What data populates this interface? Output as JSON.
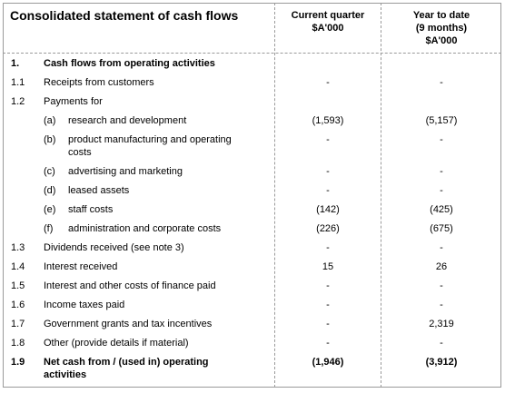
{
  "header": {
    "title": "Consolidated statement of cash flows",
    "columns": [
      [
        "Current quarter",
        "$A'000"
      ],
      [
        "Year to date",
        "(9 months)",
        "$A'000"
      ]
    ]
  },
  "table": {
    "rows": [
      {
        "num": "1.",
        "label": [
          "Cash flows from operating activities"
        ],
        "bold": true
      },
      {
        "num": "1.1",
        "label": [
          "Receipts from customers"
        ],
        "cq": "-",
        "ytd": "-"
      },
      {
        "num": "1.2",
        "label": [
          "Payments for"
        ]
      },
      {
        "sub": "(a)",
        "label": [
          "research and development"
        ],
        "cq": "(1,593)",
        "ytd": "(5,157)"
      },
      {
        "sub": "(b)",
        "label": [
          "product manufacturing and operating",
          "costs"
        ],
        "cq": "-",
        "ytd": "-"
      },
      {
        "sub": "(c)",
        "label": [
          "advertising and marketing"
        ],
        "cq": "-",
        "ytd": "-"
      },
      {
        "sub": "(d)",
        "label": [
          "leased assets"
        ],
        "cq": "-",
        "ytd": "-"
      },
      {
        "sub": "(e)",
        "label": [
          "staff costs"
        ],
        "cq": "(142)",
        "ytd": "(425)"
      },
      {
        "sub": "(f)",
        "label": [
          "administration and corporate costs"
        ],
        "cq": "(226)",
        "ytd": "(675)"
      },
      {
        "num": "1.3",
        "label": [
          "Dividends received (see note 3)"
        ],
        "cq": "-",
        "ytd": "-"
      },
      {
        "num": "1.4",
        "label": [
          "Interest received"
        ],
        "cq": "15",
        "ytd": "26"
      },
      {
        "num": "1.5",
        "label": [
          "Interest and other costs of finance paid"
        ],
        "cq": "-",
        "ytd": "-"
      },
      {
        "num": "1.6",
        "label": [
          "Income taxes paid"
        ],
        "cq": "-",
        "ytd": "-"
      },
      {
        "num": "1.7",
        "label": [
          "Government grants and tax incentives"
        ],
        "cq": "-",
        "ytd": "2,319"
      },
      {
        "num": "1.8",
        "label": [
          "Other (provide details if material)"
        ],
        "cq": "-",
        "ytd": "-"
      },
      {
        "num": "1.9",
        "label": [
          "Net cash from / (used in) operating",
          "activities"
        ],
        "cq": "(1,946)",
        "ytd": "(3,912)",
        "bold": true
      }
    ]
  }
}
